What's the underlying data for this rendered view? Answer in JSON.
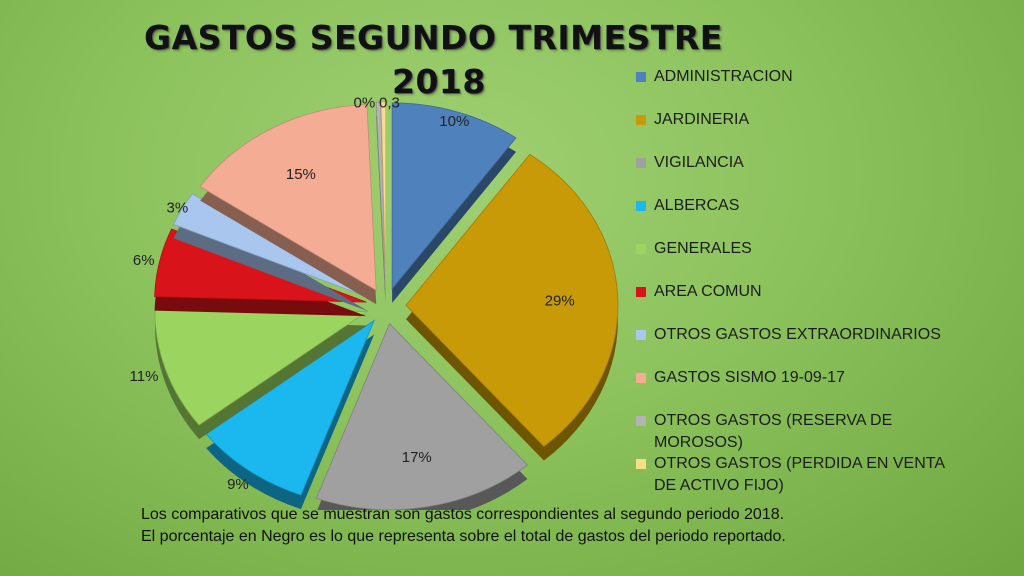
{
  "title": {
    "line1": "GASTOS SEGUNDO TRIMESTRE",
    "line2": "2018"
  },
  "chart_data": {
    "type": "pie",
    "title": "GASTOS SEGUNDO TRIMESTRE 2018",
    "style": "3d-exploded",
    "legend_position": "right",
    "slices": [
      {
        "name": "ADMINISTRACION",
        "value": 10,
        "label": "10%",
        "color": "#4f81bd"
      },
      {
        "name": "JARDINERIA",
        "value": 29,
        "label": "29%",
        "color": "#c89a08"
      },
      {
        "name": "VIGILANCIA",
        "value": 17,
        "label": "17%",
        "color": "#a0a0a0"
      },
      {
        "name": "ALBERCAS",
        "value": 9,
        "label": "9%",
        "color": "#1ab8ef"
      },
      {
        "name": "GENERALES",
        "value": 11,
        "label": "11%",
        "color": "#9bd560"
      },
      {
        "name": "AREA COMUN",
        "value": 6,
        "label": "6%",
        "color": "#d8141a"
      },
      {
        "name": "OTROS GASTOS EXTRAORDINARIOS",
        "value": 3,
        "label": "3%",
        "color": "#a8c6ee"
      },
      {
        "name": "GASTOS SISMO 19-09-17",
        "value": 15,
        "label": "15%",
        "color": "#f4ac94"
      },
      {
        "name": "OTROS GASTOS (RESERVA DE MOROSOS)",
        "value": 0,
        "label": "0%",
        "color": "#b3b3b3"
      },
      {
        "name": "OTROS GASTOS (PERDIDA EN VENTA DE ACTIVO FIJO)",
        "value": 0.3,
        "label": "0,3",
        "color": "#f7dc8a"
      }
    ]
  },
  "footer": {
    "line1": "Los comparativos que se muestran son gastos correspondientes al segundo periodo 2018.",
    "line2": "El porcentaje en Negro es lo que representa sobre el total de gastos del periodo reportado."
  }
}
